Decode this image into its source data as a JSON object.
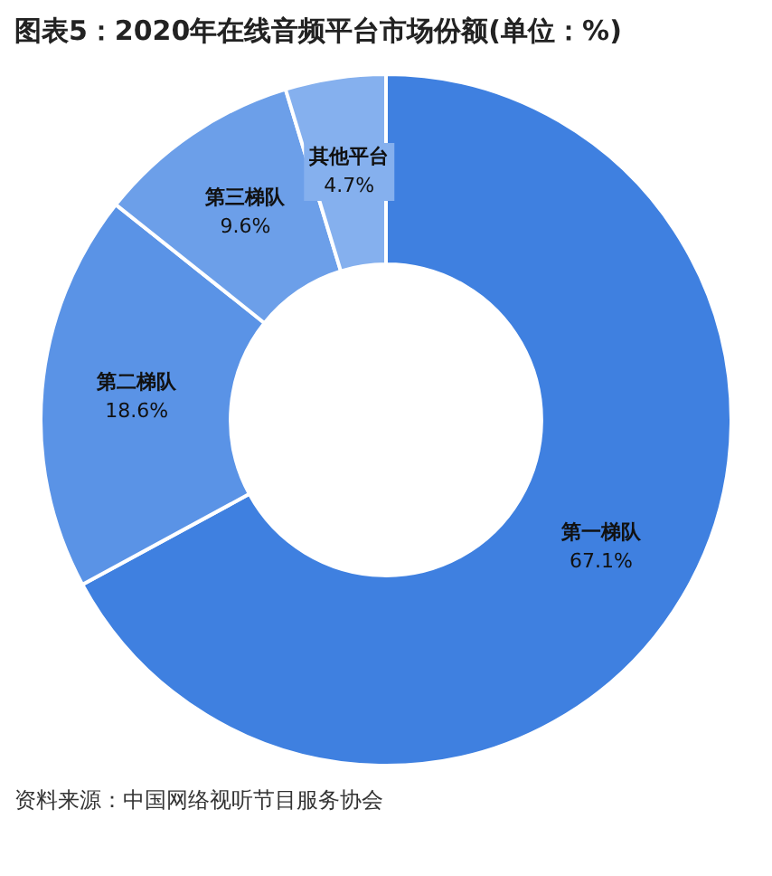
{
  "chart_data": {
    "type": "donut",
    "title": "图表5：2020年在线音频平台市场份额(单位：%)",
    "categories": [
      "第一梯队",
      "第二梯队",
      "第三梯队",
      "其他平台"
    ],
    "values": [
      67.1,
      18.6,
      9.6,
      4.7
    ],
    "colors": [
      "#3f80e0",
      "#5a93e6",
      "#6c9fe9",
      "#85b0ee"
    ],
    "value_labels": [
      "67.1%",
      "18.6%",
      "9.6%",
      "4.7%"
    ],
    "legend": false,
    "annotations": [
      "资料来源：中国网络视听节目服务协会"
    ]
  }
}
